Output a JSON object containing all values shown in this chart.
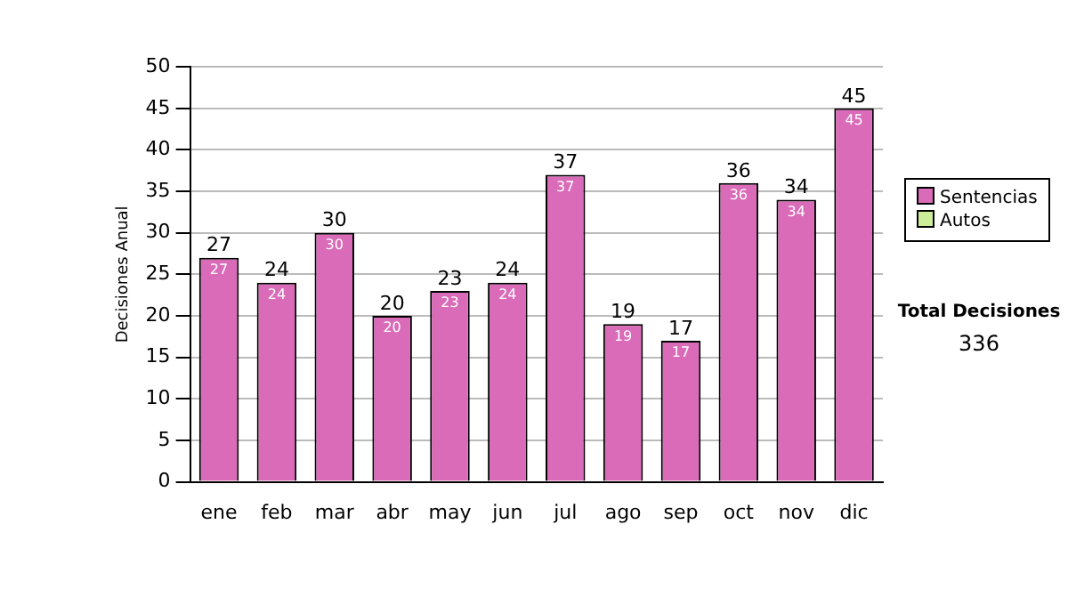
{
  "chart_data": {
    "type": "bar",
    "stacked": true,
    "ylabel": "Decisiones Anual",
    "categories": [
      "ene",
      "feb",
      "mar",
      "abr",
      "may",
      "jun",
      "jul",
      "ago",
      "sep",
      "oct",
      "nov",
      "dic"
    ],
    "series": [
      {
        "name": "Sentencias",
        "color": "#d96bb8",
        "values": [
          27,
          24,
          30,
          20,
          23,
          24,
          37,
          19,
          17,
          36,
          34,
          45
        ],
        "value_labels": [
          "27",
          "24",
          "30",
          "20",
          "23",
          "24",
          "37",
          "19",
          "17",
          "36",
          "34",
          "45"
        ]
      },
      {
        "name": "Autos",
        "color": "#ccee99",
        "values": [
          0,
          0,
          0,
          0,
          0,
          0,
          0,
          0,
          0,
          0,
          0,
          0
        ]
      }
    ],
    "totals": [
      "27",
      "24",
      "30",
      "20",
      "23",
      "24",
      "37",
      "19",
      "17",
      "36",
      "34",
      "45"
    ],
    "ylim": [
      0,
      50
    ],
    "yticks": [
      0,
      5,
      10,
      15,
      20,
      25,
      30,
      35,
      40,
      45,
      50
    ],
    "grid": "y",
    "legend": "right",
    "annotations": [
      "Total Decisiones",
      "336"
    ]
  }
}
